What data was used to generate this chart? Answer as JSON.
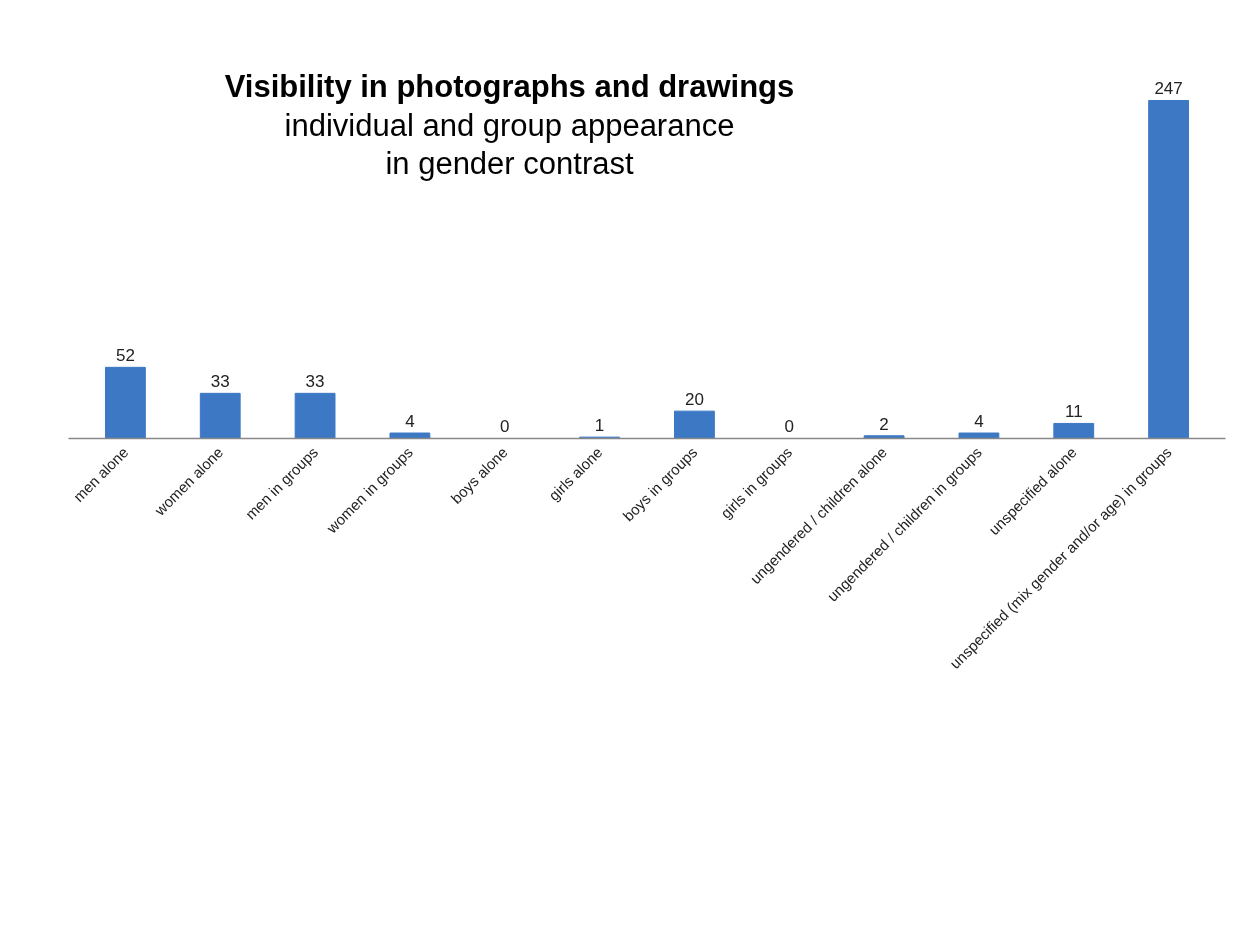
{
  "chart_data": {
    "type": "bar",
    "title": "Visibility in photographs and drawings",
    "subtitle": "individual and group appearance\nin gender contrast",
    "categories": [
      "men alone",
      "women alone",
      "men in groups",
      "women in groups",
      "boys alone",
      "girls alone",
      "boys in groups",
      "girls in groups",
      "ungendered / children alone",
      "ungendered / children in groups",
      "unspecified alone",
      "unspecified (mix gender and/or age) in groups"
    ],
    "values": [
      52,
      33,
      33,
      4,
      0,
      1,
      20,
      0,
      2,
      4,
      11,
      247
    ],
    "color": "#3d78c4",
    "data_labels": true,
    "grid": false
  }
}
